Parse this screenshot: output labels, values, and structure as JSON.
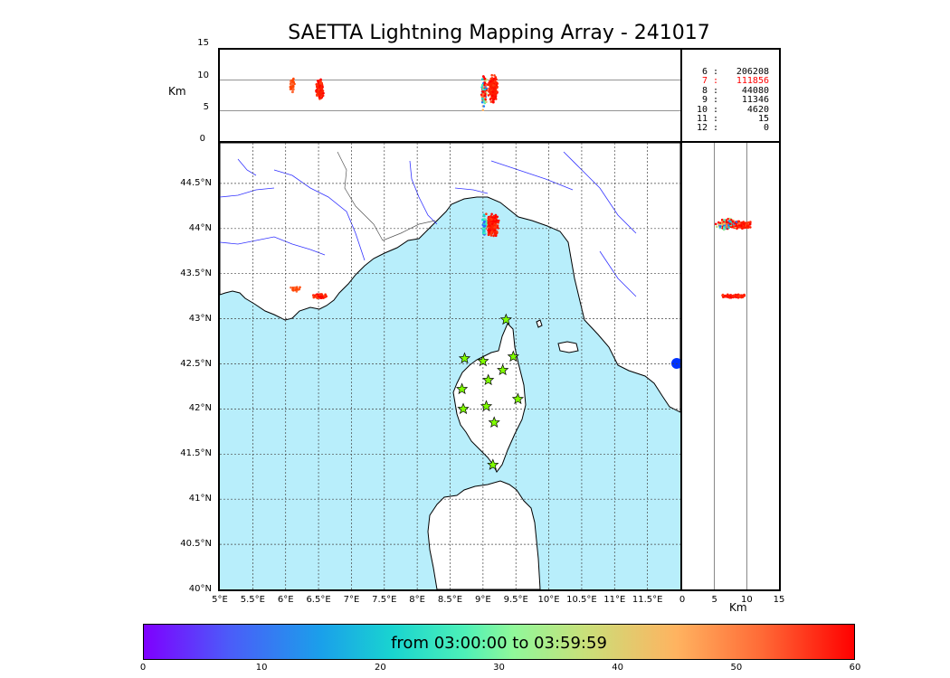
{
  "title": "SAETTA Lightning Mapping Array - 241017",
  "top_panel": {
    "ylabel": "Km",
    "yticks": [
      "15",
      "10",
      "5",
      "0"
    ],
    "ylim": [
      0,
      15
    ],
    "gridlines": [
      5,
      10
    ]
  },
  "station_counts": [
    {
      "station": "6",
      "sep": ":",
      "value": "206208",
      "color": "#000000"
    },
    {
      "station": "7",
      "sep": ":",
      "value": "111856",
      "color": "#ff0000"
    },
    {
      "station": "8",
      "sep": ":",
      "value": "44080",
      "color": "#000000"
    },
    {
      "station": "9",
      "sep": ":",
      "value": "11346",
      "color": "#000000"
    },
    {
      "station": "10",
      "sep": ":",
      "value": "4620",
      "color": "#000000"
    },
    {
      "station": "11",
      "sep": ":",
      "value": "15",
      "color": "#000000"
    },
    {
      "station": "12",
      "sep": ":",
      "value": "0",
      "color": "#000000"
    }
  ],
  "map": {
    "lat_ticks": [
      "44.5°N",
      "44°N",
      "43.5°N",
      "43°N",
      "42.5°N",
      "42°N",
      "41.5°N",
      "41°N",
      "40.5°N",
      "40°N"
    ],
    "lon_ticks": [
      "5°E",
      "5.5°E",
      "6°E",
      "6.5°E",
      "7°E",
      "7.5°E",
      "8°E",
      "8.5°E",
      "9°E",
      "9.5°E",
      "10°E",
      "10.5°E",
      "11°E",
      "11.5°E"
    ],
    "lon_range": [
      5,
      12
    ],
    "lat_range": [
      40,
      44.95
    ],
    "sea_color": "#b8eefb",
    "coast_color": "#000000",
    "river_color": "#3333ff",
    "stations": [
      {
        "lon": 9.35,
        "lat": 42.99
      },
      {
        "lon": 8.72,
        "lat": 42.56
      },
      {
        "lon": 9.0,
        "lat": 42.53
      },
      {
        "lon": 9.46,
        "lat": 42.58
      },
      {
        "lon": 9.3,
        "lat": 42.43
      },
      {
        "lon": 9.08,
        "lat": 42.32
      },
      {
        "lon": 8.68,
        "lat": 42.22
      },
      {
        "lon": 9.53,
        "lat": 42.11
      },
      {
        "lon": 8.7,
        "lat": 42.0
      },
      {
        "lon": 9.05,
        "lat": 42.03
      },
      {
        "lon": 9.17,
        "lat": 41.85
      },
      {
        "lon": 9.15,
        "lat": 41.38
      }
    ],
    "station_color": "#80ff00"
  },
  "side_panel": {
    "xlabel": "Km",
    "xticks": [
      "0",
      "5",
      "10",
      "15"
    ],
    "xlim": [
      0,
      15
    ],
    "gridlines": [
      5,
      10
    ]
  },
  "colorbar": {
    "label": "from 03:00:00 to 03:59:59",
    "ticks": [
      "0",
      "10",
      "20",
      "30",
      "40",
      "50",
      "60"
    ],
    "range": [
      0,
      60
    ]
  }
}
